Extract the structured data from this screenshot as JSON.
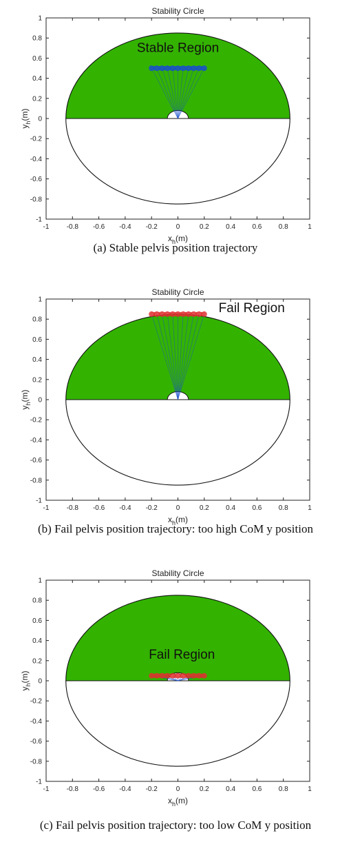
{
  "colors": {
    "stable_fill": "#33b300",
    "blue_trajectory": "#1a4fcc",
    "red_trajectory": "#e03030",
    "axis": "#222222"
  },
  "chart_data": [
    {
      "type": "scatter",
      "title": "Stability Circle",
      "xlabel": "x_h(m)",
      "ylabel": "y_h(m)",
      "xlim": [
        -1,
        1
      ],
      "ylim": [
        -1,
        1
      ],
      "xticks": [
        "-1",
        "-0.8",
        "-0.6",
        "-0.4",
        "-0.2",
        "0",
        "0.2",
        "0.4",
        "0.6",
        "0.8",
        "1"
      ],
      "yticks": [
        "1",
        "0.8",
        "0.6",
        "0.4",
        "0.2",
        "0",
        "-0.2",
        "-0.4",
        "-0.6",
        "-0.8",
        "-1"
      ],
      "circle_radius": 0.85,
      "stable_region": "upper half of circle, y >= 0",
      "inner_semicircle_radius": 0.08,
      "trajectory": {
        "y": 0.5,
        "x_start": -0.2,
        "x_end": 0.2,
        "color": "blue",
        "segments": 11
      },
      "annotation": {
        "text": "Stable Region",
        "x": 0.0,
        "y": 0.66
      },
      "caption": "(a) Stable pelvis position trajectory"
    },
    {
      "type": "scatter",
      "title": "Stability Circle",
      "xlabel": "x_h(m)",
      "ylabel": "y_h(m)",
      "xlim": [
        -1,
        1
      ],
      "ylim": [
        -1,
        1
      ],
      "xticks": [
        "-1",
        "-0.8",
        "-0.6",
        "-0.4",
        "-0.2",
        "0",
        "0.2",
        "0.4",
        "0.6",
        "0.8",
        "1"
      ],
      "yticks": [
        "1",
        "0.8",
        "0.6",
        "0.4",
        "0.2",
        "0",
        "-0.2",
        "-0.4",
        "-0.6",
        "-0.8",
        "-1"
      ],
      "circle_radius": 0.85,
      "stable_region": "upper half of circle, y >= 0",
      "inner_semicircle_radius": 0.08,
      "trajectory": {
        "y": 0.85,
        "x_start": -0.2,
        "x_end": 0.2,
        "color": "red",
        "segments": 11
      },
      "annotation": {
        "text": "Fail Region",
        "x": 0.56,
        "y": 0.87
      },
      "caption": "(b) Fail pelvis position trajectory: too high CoM y position"
    },
    {
      "type": "scatter",
      "title": "Stability Circle",
      "xlabel": "x_h(m)",
      "ylabel": "y_h(m)",
      "xlim": [
        -1,
        1
      ],
      "ylim": [
        -1,
        1
      ],
      "xticks": [
        "-1",
        "-0.8",
        "-0.6",
        "-0.4",
        "-0.2",
        "0",
        "0.2",
        "0.4",
        "0.6",
        "0.8",
        "1"
      ],
      "yticks": [
        "1",
        "0.8",
        "0.6",
        "0.4",
        "0.2",
        "0",
        "-0.2",
        "-0.4",
        "-0.6",
        "-0.8",
        "-1"
      ],
      "circle_radius": 0.85,
      "stable_region": "upper half of circle, y >= 0",
      "inner_semicircle_radius": 0.08,
      "trajectory": {
        "y": 0.05,
        "x_start": -0.2,
        "x_end": 0.2,
        "color": "red",
        "segments": 11
      },
      "annotation": {
        "text": "Fail Region",
        "x": 0.03,
        "y": 0.22
      },
      "caption": "(c) Fail pelvis position trajectory: too low CoM y position"
    }
  ]
}
